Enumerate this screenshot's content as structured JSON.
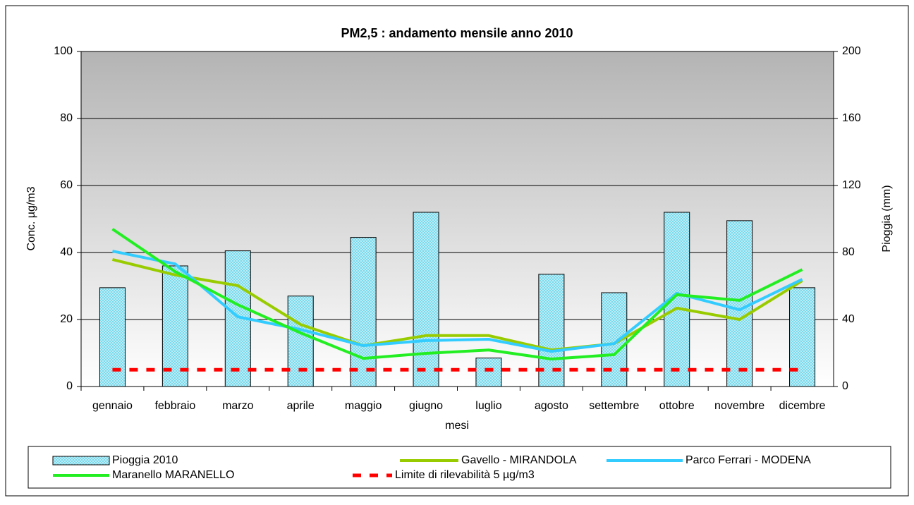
{
  "chart_data": {
    "type": "combo",
    "title": "PM2,5 : andamento mensile anno 2010",
    "x_label": "mesi",
    "y_label": "Conc. µg/m3",
    "y2_label": "Pioggia (mm)",
    "categories": [
      "gennaio",
      "febbraio",
      "marzo",
      "aprile",
      "maggio",
      "giugno",
      "luglio",
      "agosto",
      "settembre",
      "ottobre",
      "novembre",
      "dicembre"
    ],
    "ylim": [
      0,
      100
    ],
    "yticks": [
      0,
      20,
      40,
      60,
      80,
      100
    ],
    "y2lim": [
      0,
      200
    ],
    "y2ticks": [
      0,
      40,
      80,
      120,
      160,
      200
    ],
    "grid": true,
    "series": [
      {
        "name": "Pioggia 2010",
        "type": "bar",
        "axis": "y2",
        "color": "#bff0f8",
        "values": [
          59,
          72,
          81,
          54,
          89,
          104,
          17,
          67,
          56,
          104,
          99,
          59
        ]
      },
      {
        "name": "Gavello - MIRANDOLA",
        "type": "line",
        "color": "#99cc00",
        "values": [
          37.9,
          33.3,
          30.1,
          18.5,
          12.2,
          15.2,
          15.2,
          10.9,
          12.8,
          23.4,
          20,
          31.6
        ]
      },
      {
        "name": "Parco Ferrari - MODENA",
        "type": "line",
        "color": "#33ccff",
        "values": [
          40.4,
          36.6,
          20.8,
          17,
          12.2,
          13.7,
          14.1,
          10.5,
          12.8,
          27.8,
          22.9,
          32
        ]
      },
      {
        "name": "Maranello MARANELLO",
        "type": "line",
        "color": "#22ee22",
        "values": [
          47,
          34.3,
          24.4,
          16,
          8.4,
          9.9,
          10.9,
          8.2,
          9.5,
          27.4,
          25.7,
          34.9
        ]
      },
      {
        "name": "Limite di rilevabilità 5 µg/m3",
        "type": "line",
        "dash": true,
        "color": "#ff0000",
        "values": [
          5,
          5,
          5,
          5,
          5,
          5,
          5,
          5,
          5,
          5,
          5,
          5
        ]
      }
    ]
  }
}
